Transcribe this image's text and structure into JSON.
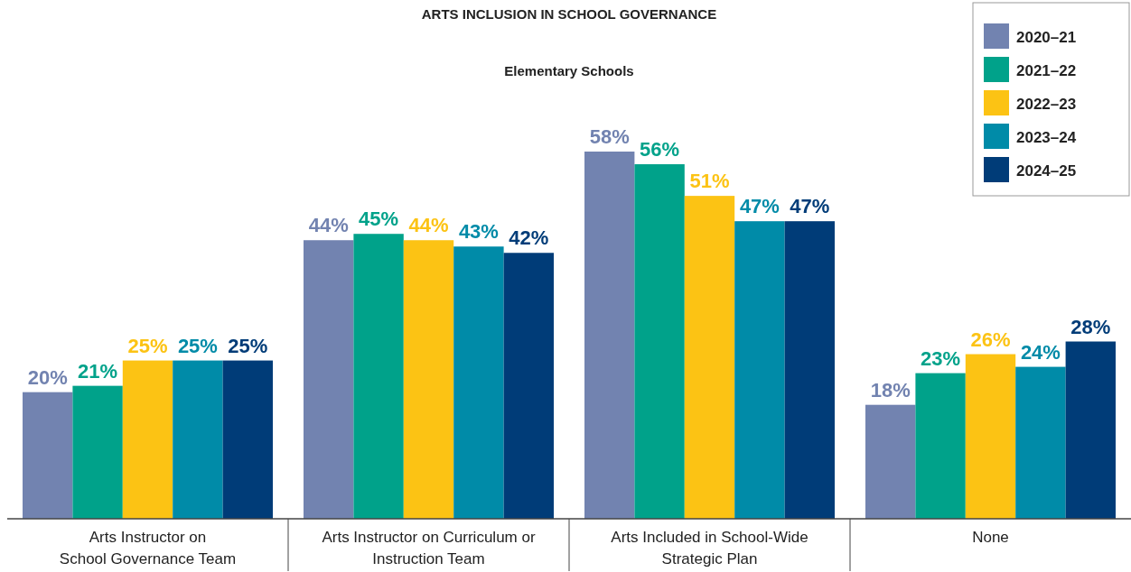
{
  "chart_data": {
    "type": "bar",
    "title": "ARTS INCLUSION IN SCHOOL GOVERNANCE",
    "subtitle": "Elementary Schools",
    "categories": [
      "Arts Instructor on\nSchool Governance Team",
      "Arts Instructor on Curriculum or\nInstruction Team",
      "Arts Included in School-Wide\nStrategic Plan",
      "None"
    ],
    "series": [
      {
        "name": "2020–21",
        "color": "#7283b0",
        "values": [
          20,
          44,
          58,
          18
        ],
        "value_labels": [
          "20%",
          "44%",
          "58%",
          "18%"
        ]
      },
      {
        "name": "2021–22",
        "color": "#00a28a",
        "values": [
          21,
          45,
          56,
          23
        ],
        "value_labels": [
          "21%",
          "45%",
          "56%",
          "23%"
        ]
      },
      {
        "name": "2022–23",
        "color": "#fcc314",
        "values": [
          25,
          44,
          51,
          26
        ],
        "value_labels": [
          "25%",
          "44%",
          "51%",
          "26%"
        ]
      },
      {
        "name": "2023–24",
        "color": "#008ba8",
        "values": [
          25,
          43,
          47,
          24
        ],
        "value_labels": [
          "25%",
          "43%",
          "47%",
          "24%"
        ]
      },
      {
        "name": "2024–25",
        "color": "#003c78",
        "values": [
          25,
          42,
          47,
          28
        ],
        "value_labels": [
          "25%",
          "42%",
          "47%",
          "28%"
        ]
      }
    ],
    "legend": "top right",
    "grid": false
  }
}
